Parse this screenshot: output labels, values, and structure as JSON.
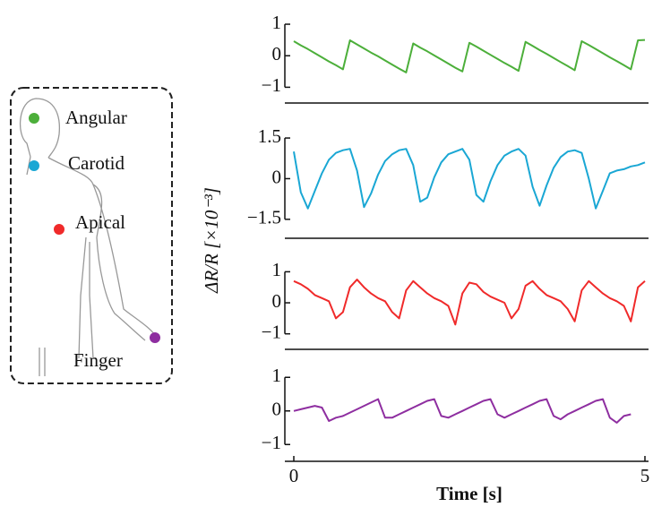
{
  "chart_data": [
    {
      "type": "line",
      "ylabel": "ΔR/R [×10⁻³]",
      "xlim": [
        0,
        5
      ],
      "ylim": [
        -1.5,
        1.2
      ],
      "yticks": [
        1,
        0,
        {
          "value": -1,
          "label": "−1"
        }
      ],
      "x": [
        0,
        0.1,
        0.2,
        0.3,
        0.4,
        0.5,
        0.6,
        0.7,
        0.8,
        0.9,
        1,
        1.1,
        1.2,
        1.3,
        1.4,
        1.5,
        1.6,
        1.7,
        1.8,
        1.9,
        2,
        2.1,
        2.2,
        2.3,
        2.4,
        2.5,
        2.6,
        2.7,
        2.8,
        2.9,
        3,
        3.1,
        3.2,
        3.3,
        3.4,
        3.5,
        3.6,
        3.7,
        3.8,
        3.9,
        4,
        4.1,
        4.2,
        4.3,
        4.4,
        4.5,
        4.6,
        4.7,
        4.8,
        4.9,
        5
      ],
      "series": [
        {
          "name": "Angular",
          "color": "#4caf3a",
          "values": [
            0.46,
            0.33,
            0.21,
            0.08,
            -0.05,
            -0.18,
            -0.3,
            -0.43,
            0.49,
            0.36,
            0.23,
            0.1,
            -0.02,
            -0.15,
            -0.28,
            -0.41,
            -0.53,
            0.39,
            0.26,
            0.14,
            0.01,
            -0.12,
            -0.25,
            -0.38,
            -0.5,
            0.41,
            0.29,
            0.16,
            0.03,
            -0.1,
            -0.23,
            -0.35,
            -0.48,
            0.44,
            0.31,
            0.18,
            0.06,
            -0.07,
            -0.2,
            -0.33,
            -0.46,
            0.46,
            0.34,
            0.21,
            0.08,
            -0.05,
            -0.17,
            -0.3,
            -0.43,
            0.49,
            0.5
          ]
        }
      ]
    },
    {
      "type": "line",
      "xlim": [
        0,
        5
      ],
      "ylim": [
        -2.2,
        1.8
      ],
      "yticks": [
        1.5,
        0,
        {
          "value": -1.5,
          "label": "−1.5"
        }
      ],
      "x": [
        0,
        0.1,
        0.2,
        0.3,
        0.4,
        0.5,
        0.6,
        0.7,
        0.8,
        0.9,
        1,
        1.1,
        1.2,
        1.3,
        1.4,
        1.5,
        1.6,
        1.7,
        1.8,
        1.9,
        2,
        2.1,
        2.2,
        2.3,
        2.4,
        2.5,
        2.6,
        2.7,
        2.8,
        2.9,
        3,
        3.1,
        3.2,
        3.3,
        3.4,
        3.5,
        3.6,
        3.7,
        3.8,
        3.9,
        4,
        4.1,
        4.2,
        4.3,
        4.4,
        4.5,
        4.6,
        4.7,
        4.8,
        4.9,
        5
      ],
      "series": [
        {
          "name": "Carotid",
          "color": "#1aa7d4",
          "values": [
            1.0,
            -0.5,
            -1.1,
            -0.45,
            0.2,
            0.7,
            0.95,
            1.05,
            1.1,
            0.3,
            -1.05,
            -0.55,
            0.15,
            0.65,
            0.9,
            1.05,
            1.1,
            0.5,
            -0.85,
            -0.7,
            0.05,
            0.6,
            0.9,
            1.0,
            1.1,
            0.7,
            -0.6,
            -0.85,
            -0.1,
            0.5,
            0.85,
            1.0,
            1.1,
            0.85,
            -0.3,
            -1.0,
            -0.25,
            0.4,
            0.8,
            1.0,
            1.05,
            0.95,
            0.0,
            -1.1,
            -0.45,
            0.2,
            0.3,
            0.35,
            0.45,
            0.5,
            0.6
          ]
        }
      ]
    },
    {
      "type": "line",
      "xlim": [
        0,
        5
      ],
      "ylim": [
        -1.5,
        1.3
      ],
      "yticks": [
        1,
        0,
        {
          "value": -1,
          "label": "−1"
        }
      ],
      "x": [
        0,
        0.1,
        0.2,
        0.3,
        0.4,
        0.5,
        0.6,
        0.7,
        0.8,
        0.9,
        1,
        1.1,
        1.2,
        1.3,
        1.4,
        1.5,
        1.6,
        1.7,
        1.8,
        1.9,
        2,
        2.1,
        2.2,
        2.3,
        2.4,
        2.5,
        2.6,
        2.7,
        2.8,
        2.9,
        3,
        3.1,
        3.2,
        3.3,
        3.4,
        3.5,
        3.6,
        3.7,
        3.8,
        3.9,
        4,
        4.1,
        4.2,
        4.3,
        4.4,
        4.5,
        4.6,
        4.7,
        4.8,
        4.9,
        5
      ],
      "series": [
        {
          "name": "Apical",
          "color": "#f02a2a",
          "values": [
            0.7,
            0.6,
            0.45,
            0.25,
            0.15,
            0.05,
            -0.5,
            -0.3,
            0.5,
            0.75,
            0.5,
            0.3,
            0.15,
            0.05,
            -0.3,
            -0.5,
            0.4,
            0.7,
            0.5,
            0.3,
            0.15,
            0.05,
            -0.1,
            -0.7,
            0.3,
            0.65,
            0.6,
            0.35,
            0.2,
            0.1,
            0.0,
            -0.5,
            -0.2,
            0.55,
            0.7,
            0.45,
            0.25,
            0.15,
            0.05,
            -0.2,
            -0.6,
            0.4,
            0.7,
            0.5,
            0.3,
            0.15,
            0.05,
            -0.1,
            -0.6,
            0.5,
            0.7
          ]
        }
      ]
    },
    {
      "type": "line",
      "xlabel": "Time [s]",
      "xlim": [
        0,
        5
      ],
      "xticks": [
        0,
        5
      ],
      "ylim": [
        -1.5,
        1.3
      ],
      "yticks": [
        1,
        0,
        {
          "value": -1,
          "label": "−1"
        }
      ],
      "x": [
        0,
        0.1,
        0.2,
        0.3,
        0.4,
        0.5,
        0.6,
        0.7,
        0.8,
        0.9,
        1,
        1.1,
        1.2,
        1.3,
        1.4,
        1.5,
        1.6,
        1.7,
        1.8,
        1.9,
        2,
        2.1,
        2.2,
        2.3,
        2.4,
        2.5,
        2.6,
        2.7,
        2.8,
        2.9,
        3,
        3.1,
        3.2,
        3.3,
        3.4,
        3.5,
        3.6,
        3.7,
        3.8,
        3.9,
        4,
        4.1,
        4.2,
        4.3,
        4.4,
        4.5,
        4.6,
        4.7,
        4.8,
        4.9,
        5
      ],
      "series": [
        {
          "name": "Finger",
          "color": "#8e2ea0",
          "values": [
            0.0,
            0.05,
            0.1,
            0.15,
            0.1,
            -0.3,
            -0.2,
            -0.15,
            -0.05,
            0.05,
            0.15,
            0.25,
            0.35,
            -0.2,
            -0.2,
            -0.1,
            0.0,
            0.1,
            0.2,
            0.3,
            0.35,
            -0.15,
            -0.2,
            -0.1,
            0.0,
            0.1,
            0.2,
            0.3,
            0.35,
            -0.1,
            -0.2,
            -0.1,
            0.0,
            0.1,
            0.2,
            0.3,
            0.35,
            -0.15,
            -0.25,
            -0.1,
            0.0,
            0.1,
            0.2,
            0.3,
            0.35,
            -0.2,
            -0.35,
            -0.15,
            -0.1,
            null,
            null
          ]
        }
      ]
    }
  ]
}
